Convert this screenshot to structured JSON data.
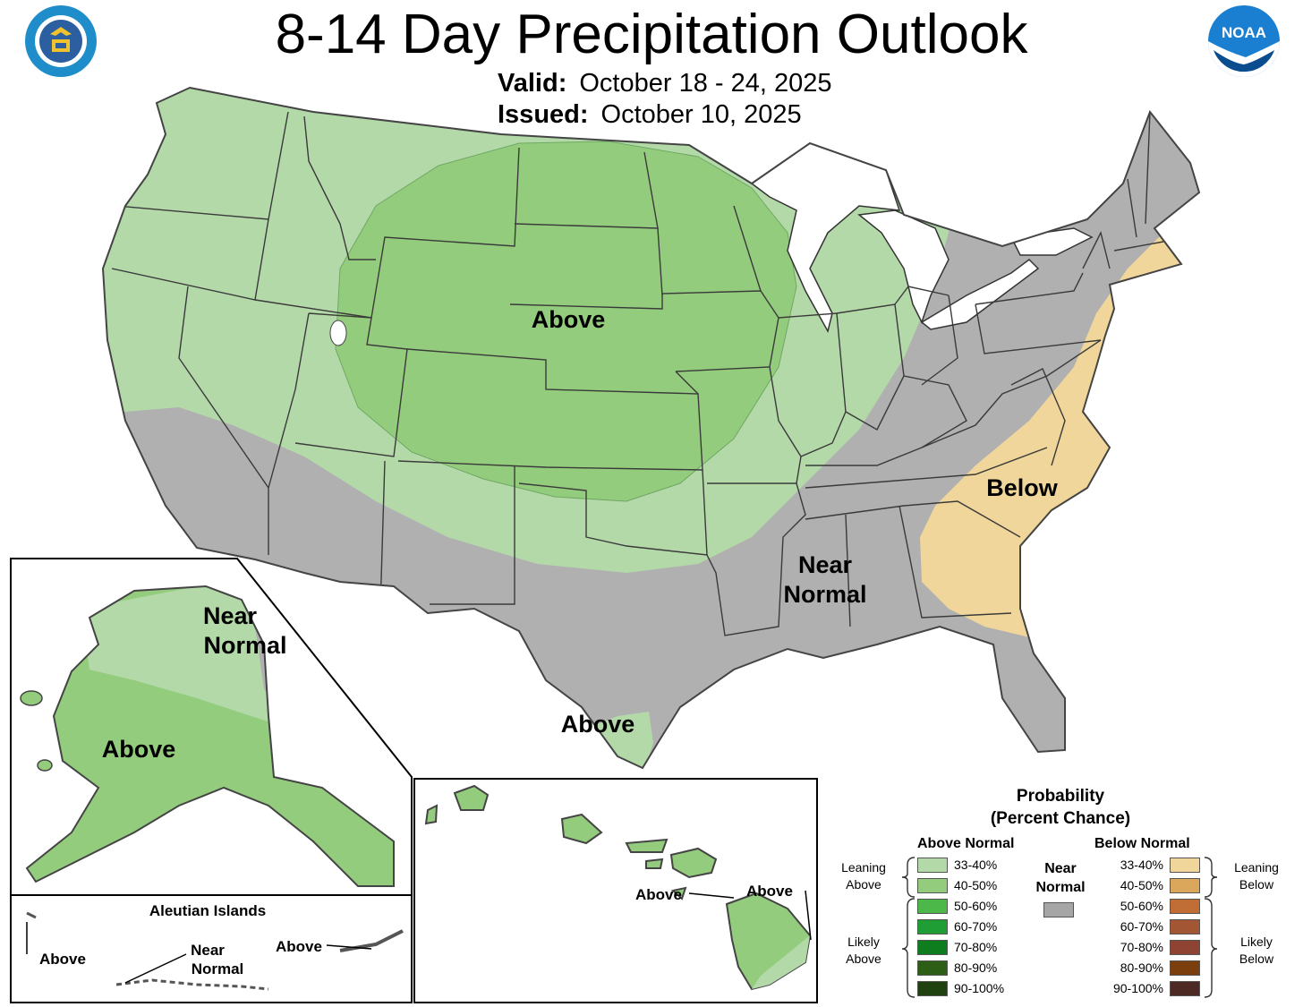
{
  "title": "8-14 Day Precipitation Outlook",
  "valid": {
    "label": "Valid:",
    "value": "October 18 - 24, 2025"
  },
  "issued": {
    "label": "Issued:",
    "value": "October 10, 2025"
  },
  "logos": {
    "left": "department-of-commerce-seal",
    "right": "noaa-logo"
  },
  "regions": {
    "conus_above": "Above",
    "conus_below": "Below",
    "conus_near_1": "Near",
    "conus_near_2": "Normal",
    "texas_above": "Above",
    "alaska_near_1": "Near",
    "alaska_near_2": "Normal",
    "alaska_above": "Above",
    "aleutian_title": "Aleutian Islands",
    "aleutian_above_1": "Above",
    "aleutian_near_1": "Near",
    "aleutian_near_2": "Normal",
    "aleutian_above_2": "Above",
    "hawaii_above_1": "Above",
    "hawaii_above_2": "Above"
  },
  "legend": {
    "title_1": "Probability",
    "title_2": "(Percent Chance)",
    "above_header": "Above Normal",
    "below_header": "Below Normal",
    "near_1": "Near",
    "near_2": "Normal",
    "leaning_above_1": "Leaning",
    "leaning_above_2": "Above",
    "likely_above_1": "Likely",
    "likely_above_2": "Above",
    "leaning_below_1": "Leaning",
    "leaning_below_2": "Below",
    "likely_below_1": "Likely",
    "likely_below_2": "Below",
    "ranges": [
      "33-40%",
      "40-50%",
      "50-60%",
      "60-70%",
      "70-80%",
      "80-90%",
      "90-100%"
    ],
    "above_colors": [
      "#b3d9a9",
      "#94cc7d",
      "#4cb84a",
      "#1e9e34",
      "#0e7d1e",
      "#2d5e16",
      "#1f4210"
    ],
    "below_colors": [
      "#f0d69a",
      "#dba75a",
      "#c06e35",
      "#a35633",
      "#8f4433",
      "#7a3f0c",
      "#4e2a25"
    ],
    "near_color": "#a6a6a6"
  },
  "colors": {
    "above_33_40": "#b3d9a9",
    "above_40_50": "#94cc7d",
    "below_33_40": "#f0d69a",
    "near_normal": "#b0b0b0",
    "lakes": "#ffffff"
  }
}
